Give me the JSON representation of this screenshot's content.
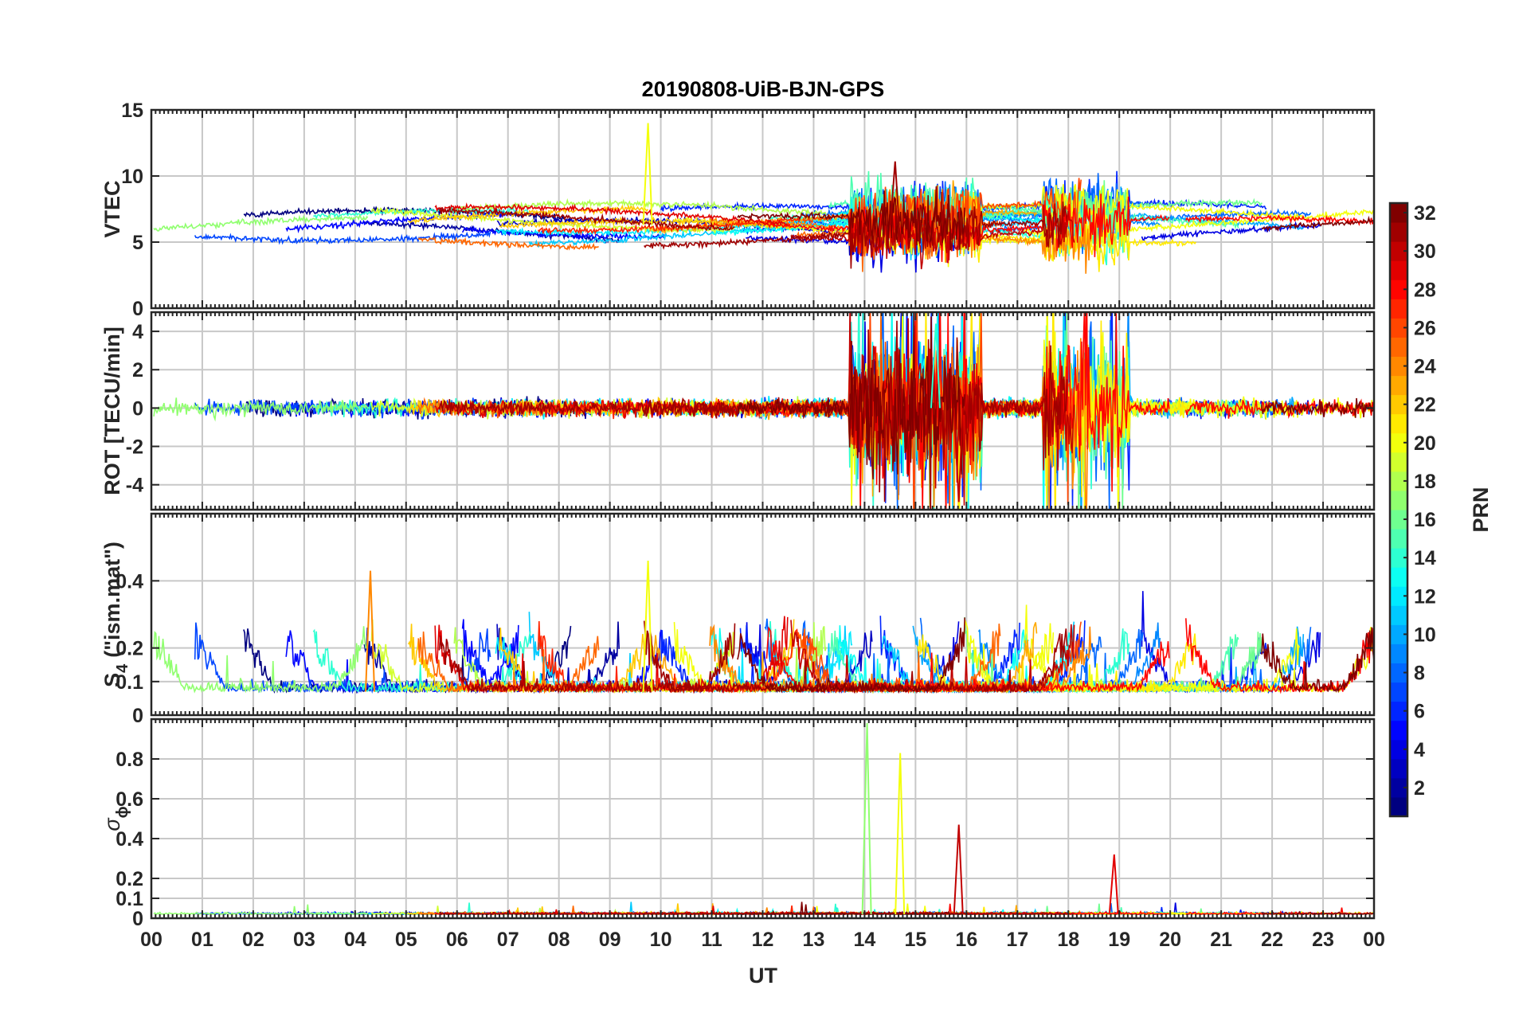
{
  "chart_data": {
    "title": "20190808-UiB-BJN-GPS",
    "type": "line",
    "xlabel": "UT",
    "x_tick_labels": [
      "00",
      "01",
      "02",
      "03",
      "04",
      "05",
      "06",
      "07",
      "08",
      "09",
      "10",
      "11",
      "12",
      "13",
      "14",
      "15",
      "16",
      "17",
      "18",
      "19",
      "20",
      "21",
      "22",
      "23",
      "00"
    ],
    "xlim": [
      0,
      24
    ],
    "grid": true,
    "colorbar": {
      "label": "PRN",
      "colormap": "jet",
      "range": [
        1,
        32
      ],
      "levels": 32,
      "tick_labels": [
        "2",
        "4",
        "6",
        "8",
        "10",
        "12",
        "14",
        "16",
        "18",
        "20",
        "22",
        "24",
        "26",
        "28",
        "30",
        "32"
      ],
      "placement": "right"
    },
    "panels": [
      {
        "ylabel": "VTEC",
        "ylim": [
          0,
          15
        ],
        "y_ticks": [
          0,
          5,
          10,
          15
        ],
        "y_tick_labels": [
          "0",
          "5",
          "10",
          "15"
        ],
        "signal": {
          "type": "tec",
          "baseline": 6.3,
          "amplitude": 0.9,
          "disturbed_windows": [
            [
              13.7,
              16.3
            ],
            [
              17.5,
              19.2
            ]
          ]
        },
        "notable_points": [
          {
            "x": 9.75,
            "y": 14.0,
            "prn": 20
          },
          {
            "x": 14.6,
            "y": 11.1,
            "prn": 31
          }
        ]
      },
      {
        "ylabel": "ROT [TECU/min]",
        "ylim": [
          -5.3,
          5.0
        ],
        "y_ticks": [
          -4,
          -2,
          0,
          2,
          4
        ],
        "y_tick_labels": [
          "-4",
          "-2",
          "0",
          "2",
          "4"
        ],
        "signal": {
          "type": "rot",
          "quiet_amplitude": 0.3,
          "disturbed_windows": [
            [
              13.7,
              16.3
            ],
            [
              17.5,
              19.2
            ]
          ],
          "disturbed_amplitude": 3.5
        },
        "notable_points": [
          {
            "x": 15.85,
            "y": -4.9,
            "prn": 30
          },
          {
            "x": 15.4,
            "y": 4.4,
            "prn": 14
          }
        ]
      },
      {
        "ylabel_main": "S",
        "ylabel_sub": "4",
        "ylabel_suffix": "(\"ism.mat\")",
        "ylim": [
          0,
          0.6
        ],
        "y_ticks": [
          0,
          0.1,
          0.2,
          0.4
        ],
        "y_tick_labels": [
          "0",
          "0.1",
          "0.2",
          "0.4"
        ],
        "signal": {
          "type": "s4",
          "baseline": 0.07,
          "peak_max": 0.46
        },
        "notable_points": [
          {
            "x": 9.75,
            "y": 0.46,
            "prn": 20
          },
          {
            "x": 4.3,
            "y": 0.43,
            "prn": 24
          }
        ]
      },
      {
        "ylabel_main": "σ",
        "ylabel_sub": "ϕ",
        "ylim": [
          0,
          1.0
        ],
        "y_ticks": [
          0,
          0.1,
          0.2,
          0.4,
          0.6,
          0.8
        ],
        "y_tick_labels": [
          "0",
          "0.1",
          "0.2",
          "0.4",
          "0.6",
          "0.8"
        ],
        "signal": {
          "type": "sigma_phi",
          "baseline": 0.02
        },
        "notable_points": [
          {
            "x": 14.05,
            "y": 0.98,
            "prn": 17
          },
          {
            "x": 14.7,
            "y": 0.83,
            "prn": 20
          },
          {
            "x": 15.85,
            "y": 0.47,
            "prn": 30
          },
          {
            "x": 18.9,
            "y": 0.32,
            "prn": 29
          }
        ]
      }
    ]
  }
}
